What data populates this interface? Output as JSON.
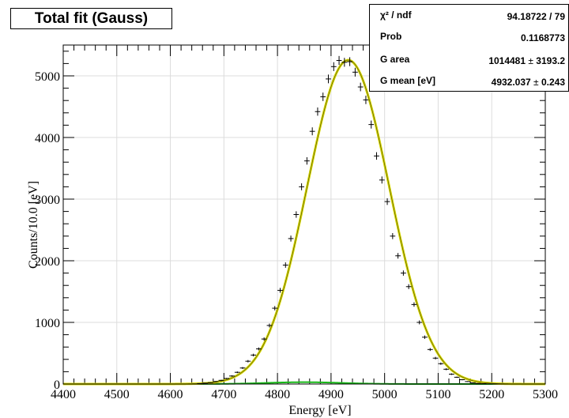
{
  "title": "Total fit (Gauss)",
  "stats": [
    {
      "key": "χ² / ndf",
      "value": "94.18722 / 79",
      "error": ""
    },
    {
      "key": "Prob",
      "value": "0.1168773",
      "error": ""
    },
    {
      "key": "G area",
      "value": "1014481",
      "error": "3193.2"
    },
    {
      "key": "G mean [eV]",
      "value": "4932.037",
      "error": "0.243"
    }
  ],
  "colors": {
    "fit": "#d8d800",
    "background_fit": "#18b818",
    "data": "#000000"
  },
  "chart_data": {
    "type": "scatter",
    "title": "Total fit (Gauss)",
    "xlabel": "Energy [eV]",
    "ylabel": "Counts/10.0 [eV]",
    "xlim": [
      4400,
      5300
    ],
    "ylim": [
      0,
      5500
    ],
    "xticks": [
      4400,
      4500,
      4600,
      4700,
      4800,
      4900,
      5000,
      5100,
      5200,
      5300
    ],
    "yticks": [
      0,
      1000,
      2000,
      3000,
      4000,
      5000
    ],
    "grid": true,
    "bin_width": 10,
    "series": [
      {
        "kind": "points",
        "x": [
          4655,
          4665,
          4675,
          4685,
          4695,
          4705,
          4715,
          4725,
          4735,
          4745,
          4755,
          4765,
          4775,
          4785,
          4795,
          4805,
          4815,
          4825,
          4835,
          4845,
          4855,
          4865,
          4875,
          4885,
          4895,
          4905,
          4915,
          4925,
          4935,
          4945,
          4955,
          4965,
          4975,
          4985,
          4995,
          5005,
          5015,
          5025,
          5035,
          5045,
          5055,
          5065,
          5075,
          5085,
          5095,
          5105,
          5115,
          5125,
          5135,
          5145,
          5155,
          5165,
          5175,
          5185,
          5195,
          5205
        ],
        "y": [
          8,
          15,
          22,
          40,
          60,
          90,
          130,
          190,
          260,
          370,
          470,
          570,
          730,
          950,
          1230,
          1520,
          1930,
          2360,
          2750,
          3200,
          3620,
          4100,
          4420,
          4660,
          4950,
          5150,
          5250,
          5220,
          5230,
          5060,
          4820,
          4610,
          4210,
          3700,
          3310,
          2960,
          2400,
          2080,
          1800,
          1580,
          1290,
          1000,
          760,
          560,
          420,
          330,
          240,
          160,
          110,
          70,
          40,
          20,
          10,
          6,
          3,
          1
        ]
      },
      {
        "kind": "gauss_fit",
        "area": 1014481,
        "mean": 4932.037,
        "sigma": 77,
        "bin_width": 10
      },
      {
        "kind": "background_fit",
        "amplitude": 30,
        "mean": 4850,
        "sigma": 70
      }
    ]
  }
}
